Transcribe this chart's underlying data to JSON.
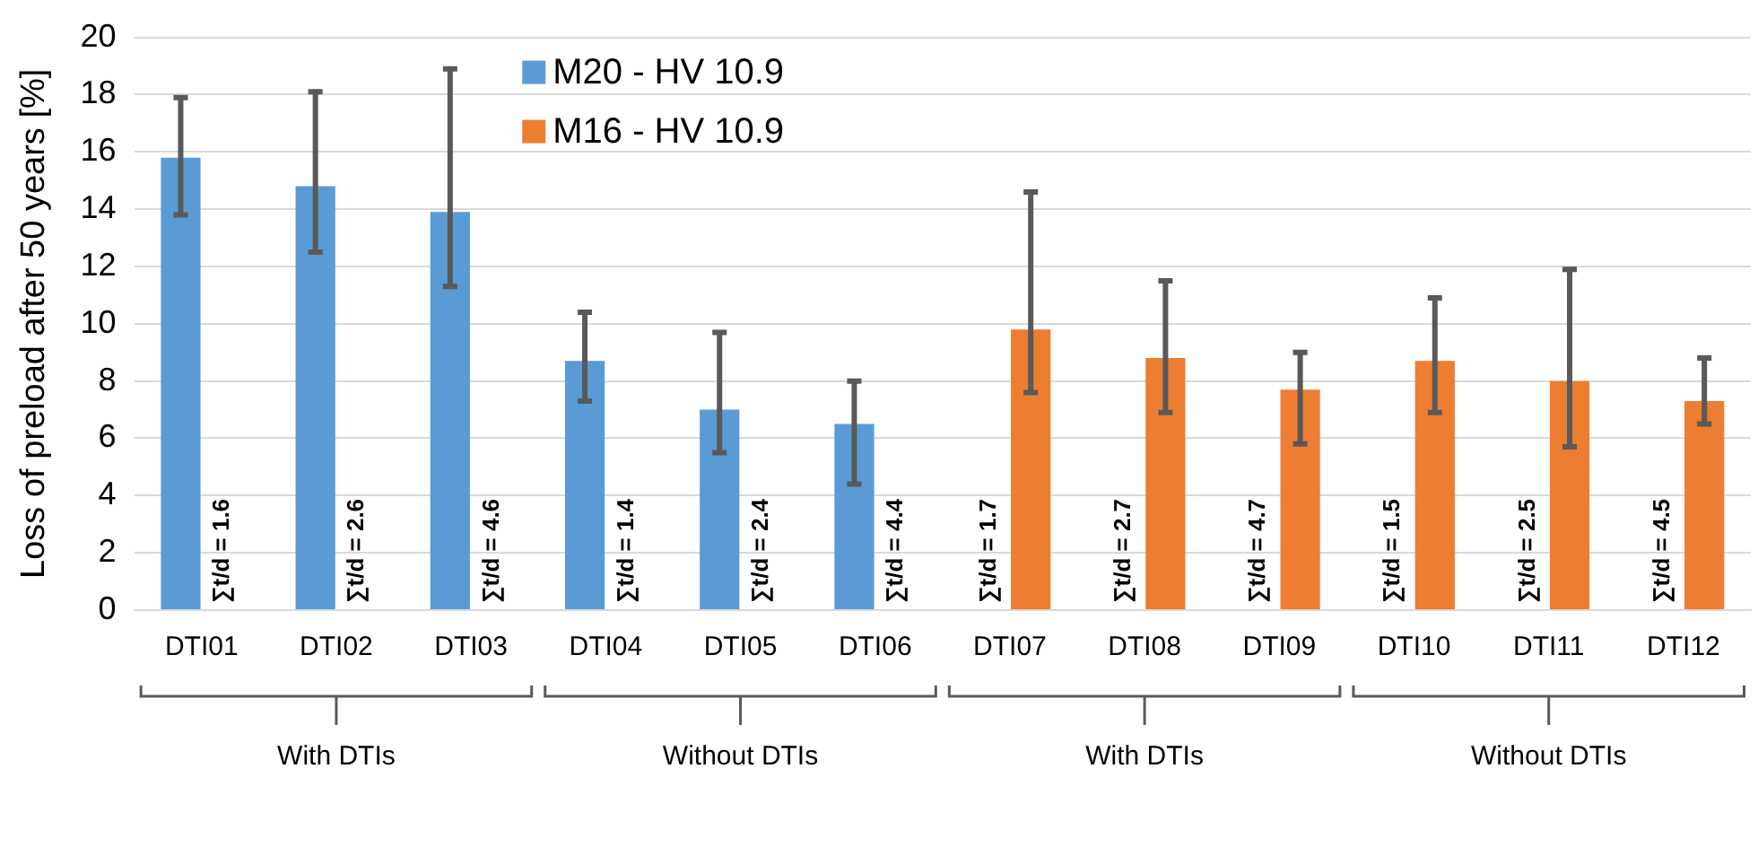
{
  "chart_data": {
    "type": "bar",
    "ylabel": "Loss of preload after 50 years [%]",
    "categories": [
      "DTI01",
      "DTI02",
      "DTI03",
      "DTI04",
      "DTI05",
      "DTI06",
      "DTI07",
      "DTI08",
      "DTI09",
      "DTI10",
      "DTI11",
      "DTI12"
    ],
    "series": [
      {
        "name": "M20 - HV 10.9",
        "color": "#5b9bd5",
        "values": [
          15.8,
          14.8,
          13.9,
          8.7,
          7.0,
          6.5,
          null,
          null,
          null,
          null,
          null,
          null
        ],
        "errors": [
          [
            13.8,
            17.9
          ],
          [
            12.5,
            18.1
          ],
          [
            11.3,
            18.9
          ],
          [
            7.3,
            10.4
          ],
          [
            5.5,
            9.7
          ],
          [
            4.4,
            8.0
          ],
          null,
          null,
          null,
          null,
          null,
          null
        ]
      },
      {
        "name": "M16 - HV 10.9",
        "color": "#ed7d31",
        "values": [
          null,
          null,
          null,
          null,
          null,
          null,
          9.8,
          8.8,
          7.7,
          8.7,
          8.0,
          7.3
        ],
        "errors": [
          null,
          null,
          null,
          null,
          null,
          null,
          [
            7.6,
            14.6
          ],
          [
            6.9,
            11.5
          ],
          [
            5.8,
            9.0
          ],
          [
            6.9,
            10.9
          ],
          [
            5.7,
            11.9
          ],
          [
            6.5,
            8.8
          ]
        ]
      }
    ],
    "ylim": [
      0,
      20
    ],
    "yticks": [
      0,
      2,
      4,
      6,
      8,
      10,
      12,
      14,
      16,
      18,
      20
    ],
    "grid": "y",
    "legend": "top left",
    "annotations": [
      "∑t/d = 1.6",
      "∑t/d = 2.6",
      "∑t/d = 4.6",
      "∑t/d = 1.4",
      "∑t/d = 2.4",
      "∑t/d = 4.4",
      "∑t/d = 1.7",
      "∑t/d = 2.7",
      "∑t/d = 4.7",
      "∑t/d = 1.5",
      "∑t/d = 2.5",
      "∑t/d = 4.5",
      "With DTIs",
      "Without DTIs",
      "With DTIs",
      "Without DTIs"
    ]
  }
}
